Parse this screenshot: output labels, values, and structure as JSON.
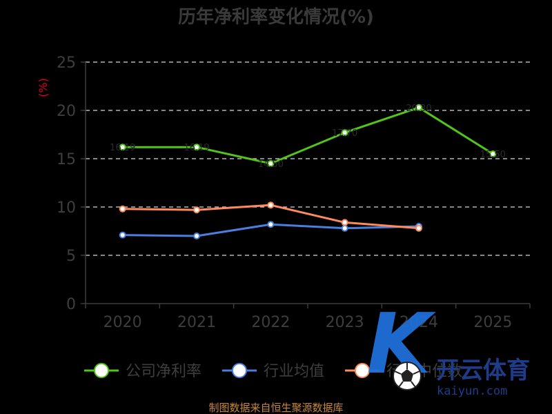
{
  "chart_data": {
    "type": "line",
    "title": "历年净利率变化情况(%)",
    "ylabel": "(%)",
    "categories": [
      "2020",
      "2021",
      "2022",
      "2023",
      "2024",
      "2025"
    ],
    "y_ticks": [
      "0",
      "5",
      "10",
      "15",
      "20",
      "25"
    ],
    "ylim": [
      0,
      25
    ],
    "grid": true,
    "legend_placement": "bottom",
    "series": [
      {
        "name": "公司净利率",
        "color": "#52c41a",
        "values": [
          16.2,
          16.2,
          14.5,
          17.7,
          20.3,
          15.5
        ],
        "labels": [
          "16.19",
          "16.19",
          "14.50",
          "17.70",
          "20.30",
          "15.50"
        ]
      },
      {
        "name": "行业均值",
        "color": "#4a7fe0",
        "values": [
          7.1,
          7.0,
          8.2,
          7.8,
          8.0,
          null
        ]
      },
      {
        "name": "行业中位数",
        "color": "#ff8a5c",
        "values": [
          9.8,
          9.7,
          10.2,
          8.4,
          7.8,
          null
        ]
      }
    ]
  },
  "source_note": "制图数据来自恒生聚源数据库",
  "watermark": {
    "brand": "开云体育",
    "url": "kaiyun.com",
    "icon": "soccer-ball-icon"
  }
}
